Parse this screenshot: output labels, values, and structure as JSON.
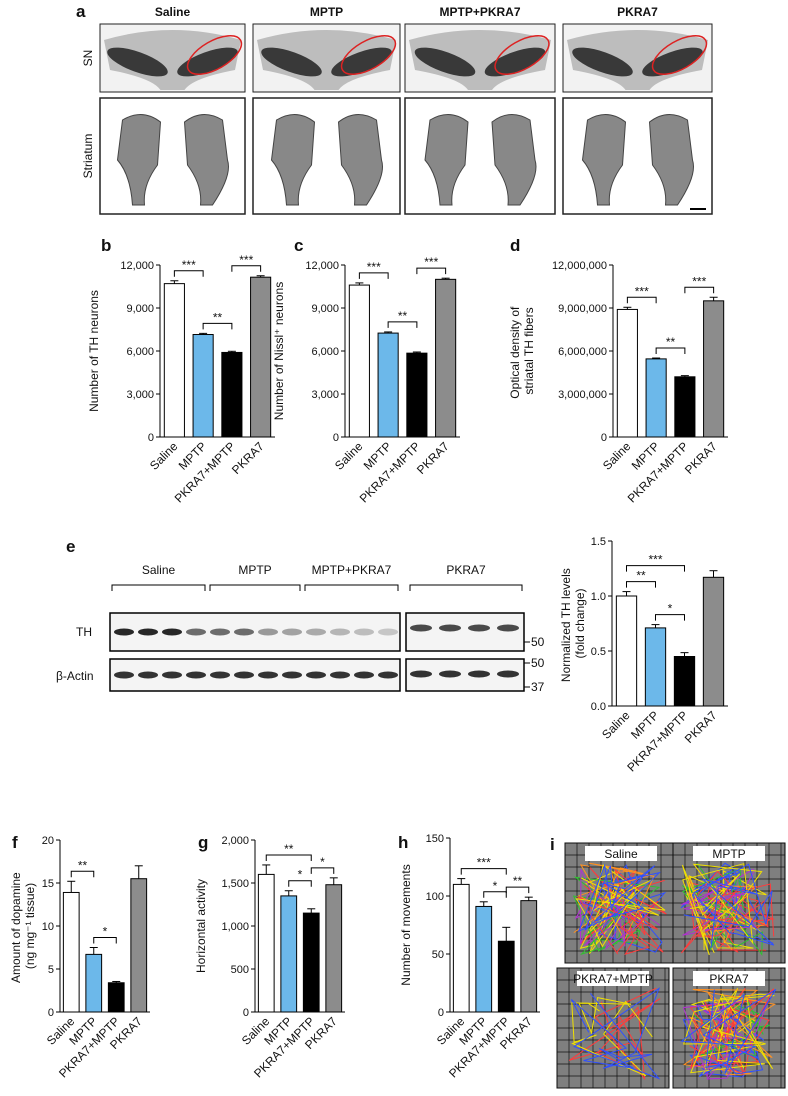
{
  "panel_a": {
    "label": "a",
    "columns": [
      "Saline",
      "MPTP",
      "MPTP+PKRA7",
      "PKRA7"
    ],
    "rows": [
      "SN",
      "Striatum"
    ]
  },
  "panel_e_blot": {
    "label": "e",
    "groups": [
      "Saline",
      "MPTP",
      "MPTP+PKRA7",
      "PKRA7"
    ],
    "bands": [
      "TH",
      "β-Actin"
    ],
    "markers": [
      "50",
      "50",
      "37"
    ]
  },
  "panel_i": {
    "label": "i",
    "conditions": [
      "Saline",
      "MPTP",
      "PKRA7+MPTP",
      "PKRA7"
    ]
  },
  "chart_data": [
    {
      "panel": "b",
      "type": "bar",
      "ylabel": "Number of TH neurons",
      "categories": [
        "Saline",
        "MPTP",
        "PKRA7+MPTP",
        "PKRA7"
      ],
      "values": [
        10700,
        7150,
        5900,
        11150
      ],
      "errors": [
        200,
        80,
        80,
        100
      ],
      "colors": [
        "#ffffff",
        "#6cb8ea",
        "#000000",
        "#8c8c8c"
      ],
      "ylim": [
        0,
        12000
      ],
      "yticks": [
        0,
        {
          "value": 3000,
          "label": "3,000"
        },
        {
          "value": 6000,
          "label": "6,000"
        },
        {
          "value": 9000,
          "label": "9,000"
        },
        {
          "value": 12000,
          "label": "12,000"
        }
      ],
      "brackets": [
        {
          "pair": [
            "Saline",
            "MPTP"
          ],
          "label": "***"
        },
        {
          "pair": [
            "MPTP",
            "PKRA7+MPTP"
          ],
          "label": "**"
        },
        {
          "pair": [
            "PKRA7+MPTP",
            "PKRA7"
          ],
          "label": "***"
        }
      ]
    },
    {
      "panel": "c",
      "type": "bar",
      "ylabel": "Number of Nissl⁺ neurons",
      "categories": [
        "Saline",
        "MPTP",
        "PKRA7+MPTP",
        "PKRA7"
      ],
      "values": [
        10600,
        7250,
        5850,
        11000
      ],
      "errors": [
        150,
        80,
        80,
        80
      ],
      "colors": [
        "#ffffff",
        "#6cb8ea",
        "#000000",
        "#8c8c8c"
      ],
      "ylim": [
        0,
        12000
      ],
      "yticks": [
        0,
        {
          "value": 3000,
          "label": "3,000"
        },
        {
          "value": 6000,
          "label": "6,000"
        },
        {
          "value": 9000,
          "label": "9,000"
        },
        {
          "value": 12000,
          "label": "12,000"
        }
      ],
      "brackets": [
        {
          "pair": [
            "Saline",
            "MPTP"
          ],
          "label": "***"
        },
        {
          "pair": [
            "MPTP",
            "PKRA7+MPTP"
          ],
          "label": "**"
        },
        {
          "pair": [
            "PKRA7+MPTP",
            "PKRA7"
          ],
          "label": "***"
        }
      ]
    },
    {
      "panel": "d",
      "type": "bar",
      "ylabel": "Optical density of striatal TH fibers",
      "categories": [
        "Saline",
        "MPTP",
        "PKRA7+MPTP",
        "PKRA7"
      ],
      "values": [
        8900000,
        5450000,
        4200000,
        9500000
      ],
      "errors": [
        150000,
        60000,
        80000,
        250000
      ],
      "colors": [
        "#ffffff",
        "#6cb8ea",
        "#000000",
        "#8c8c8c"
      ],
      "ylim": [
        0,
        12000000
      ],
      "yticks": [
        0,
        {
          "value": 3000000,
          "label": "3,000,000"
        },
        {
          "value": 6000000,
          "label": "6,000,000"
        },
        {
          "value": 9000000,
          "label": "9,000,000"
        },
        {
          "value": 12000000,
          "label": "12,000,000"
        }
      ],
      "brackets": [
        {
          "pair": [
            "Saline",
            "MPTP"
          ],
          "label": "***"
        },
        {
          "pair": [
            "MPTP",
            "PKRA7+MPTP"
          ],
          "label": "**"
        },
        {
          "pair": [
            "PKRA7+MPTP",
            "PKRA7"
          ],
          "label": "***"
        }
      ]
    },
    {
      "type": "bar",
      "ylabel": "Normalized TH levels (fold change)",
      "categories": [
        "Saline",
        "MPTP",
        "PKRA7+MPTP",
        "PKRA7"
      ],
      "values": [
        1.0,
        0.71,
        0.45,
        1.17
      ],
      "errors": [
        0.04,
        0.03,
        0.035,
        0.06
      ],
      "colors": [
        "#ffffff",
        "#6cb8ea",
        "#000000",
        "#8c8c8c"
      ],
      "ylim": [
        0,
        1.5
      ],
      "yticks": [
        {
          "value": 0,
          "label": "0.0"
        },
        0.5,
        {
          "value": 1,
          "label": "1.0"
        },
        1.5
      ],
      "brackets": [
        {
          "pair": [
            "Saline",
            "MPTP"
          ],
          "label": "**"
        },
        {
          "pair": [
            "Saline",
            "PKRA7+MPTP"
          ],
          "label": "***"
        },
        {
          "pair": [
            "MPTP",
            "PKRA7+MPTP"
          ],
          "label": "*"
        }
      ]
    },
    {
      "panel": "f",
      "type": "bar",
      "ylabel": "Amount of dopamine (ng mg⁻¹ tissue)",
      "categories": [
        "Saline",
        "MPTP",
        "PKRA7+MPTP",
        "PKRA7"
      ],
      "values": [
        13.9,
        6.7,
        3.4,
        15.5
      ],
      "errors": [
        1.3,
        0.8,
        0.15,
        1.5
      ],
      "colors": [
        "#ffffff",
        "#6cb8ea",
        "#000000",
        "#8c8c8c"
      ],
      "ylim": [
        0,
        20
      ],
      "yticks": [
        0,
        5,
        10,
        15,
        20
      ],
      "brackets": [
        {
          "pair": [
            "Saline",
            "MPTP"
          ],
          "label": "**"
        },
        {
          "pair": [
            "MPTP",
            "PKRA7+MPTP"
          ],
          "label": "*"
        }
      ]
    },
    {
      "panel": "g",
      "type": "bar",
      "ylabel": "Horizontal activity",
      "categories": [
        "Saline",
        "MPTP",
        "PKRA7+MPTP",
        "PKRA7"
      ],
      "values": [
        1600,
        1350,
        1150,
        1480
      ],
      "errors": [
        110,
        60,
        50,
        80
      ],
      "colors": [
        "#ffffff",
        "#6cb8ea",
        "#000000",
        "#8c8c8c"
      ],
      "ylim": [
        0,
        2000
      ],
      "yticks": [
        0,
        500,
        {
          "value": 1000,
          "label": "1,000"
        },
        {
          "value": 1500,
          "label": "1,500"
        },
        {
          "value": 2000,
          "label": "2,000"
        }
      ],
      "brackets": [
        {
          "pair": [
            "Saline",
            "PKRA7+MPTP"
          ],
          "label": "**"
        },
        {
          "pair": [
            "MPTP",
            "PKRA7+MPTP"
          ],
          "label": "*"
        },
        {
          "pair": [
            "PKRA7+MPTP",
            "PKRA7"
          ],
          "label": "*"
        }
      ]
    },
    {
      "panel": "h",
      "type": "bar",
      "ylabel": "Number of movements",
      "categories": [
        "Saline",
        "MPTP",
        "PKRA7+MPTP",
        "PKRA7"
      ],
      "values": [
        110,
        91,
        61,
        96
      ],
      "errors": [
        5,
        4,
        12,
        3
      ],
      "colors": [
        "#ffffff",
        "#6cb8ea",
        "#000000",
        "#8c8c8c"
      ],
      "ylim": [
        0,
        150
      ],
      "yticks": [
        0,
        50,
        100,
        150
      ],
      "brackets": [
        {
          "pair": [
            "Saline",
            "PKRA7+MPTP"
          ],
          "label": "***"
        },
        {
          "pair": [
            "MPTP",
            "PKRA7+MPTP"
          ],
          "label": "*"
        },
        {
          "pair": [
            "PKRA7+MPTP",
            "PKRA7"
          ],
          "label": "**"
        }
      ]
    }
  ]
}
